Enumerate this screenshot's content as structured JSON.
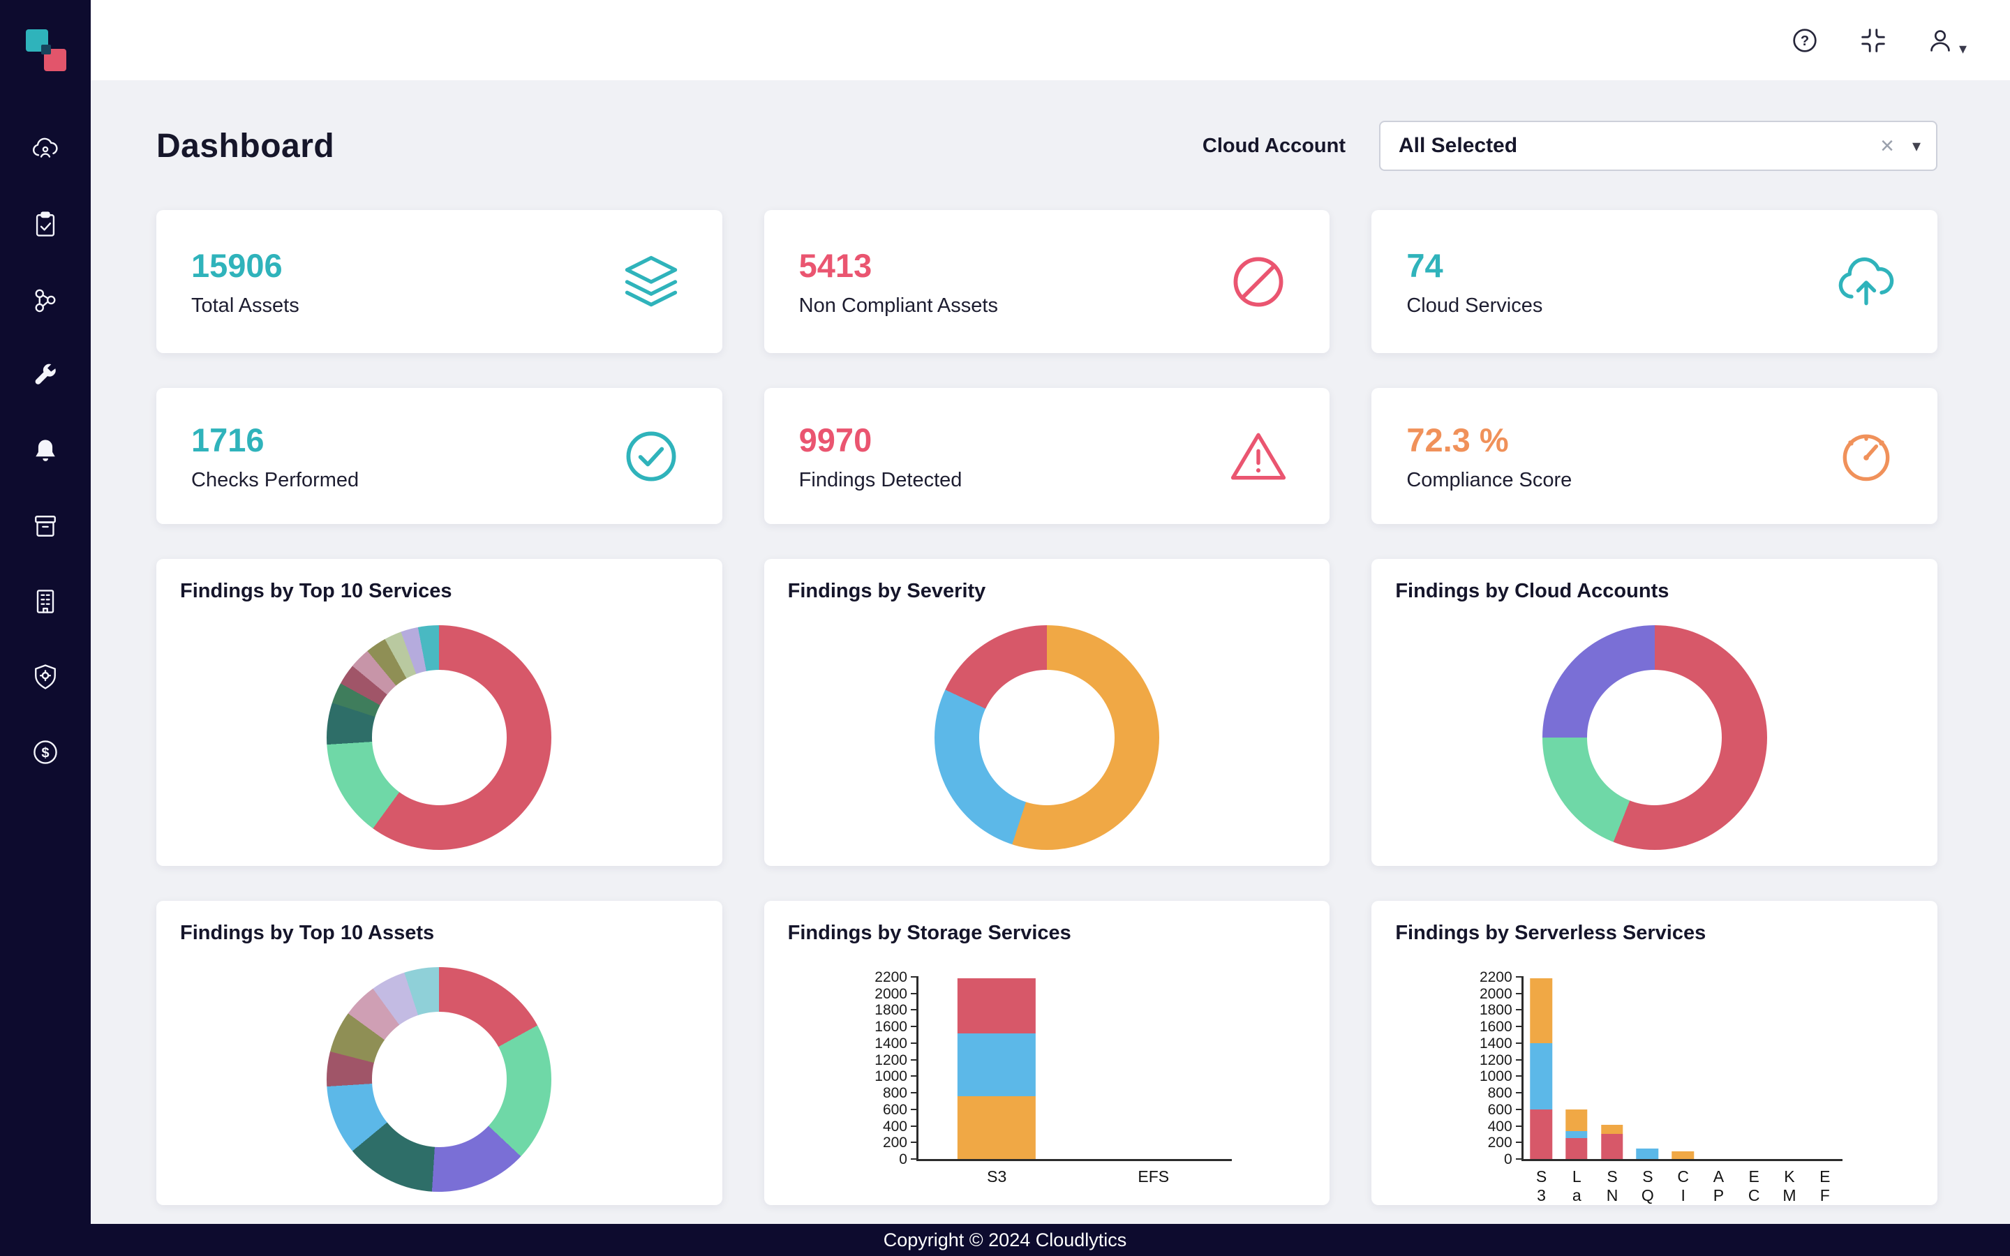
{
  "header": {
    "icons": [
      "help-icon",
      "compress-icon",
      "user-menu-icon"
    ]
  },
  "sidebar": {
    "logo": "cloudlytics-logo",
    "icons": [
      "cloud-account-icon",
      "clipboard-check-icon",
      "resource-graph-icon",
      "wrench-icon",
      "bell-icon",
      "archive-icon",
      "building-icon",
      "shield-icon",
      "dollar-icon"
    ]
  },
  "page": {
    "title": "Dashboard",
    "cloud_account_label": "Cloud Account",
    "cloud_account_value": "All Selected"
  },
  "stats": [
    {
      "value": "15906",
      "label": "Total Assets",
      "color": "#2fb3bb",
      "icon": "layers-icon"
    },
    {
      "value": "5413",
      "label": "Non Compliant Assets",
      "color": "#ea5570",
      "icon": "block-icon"
    },
    {
      "value": "74",
      "label": "Cloud Services",
      "color": "#2fb3bb",
      "icon": "cloud-upload-icon"
    },
    {
      "value": "1716",
      "label": "Checks Performed",
      "color": "#2fb3bb",
      "icon": "check-circle-icon"
    },
    {
      "value": "9970",
      "label": "Findings Detected",
      "color": "#ea5570",
      "icon": "warning-icon"
    },
    {
      "value": "72.3 %",
      "label": "Compliance Score",
      "color": "#f0915a",
      "icon": "gauge-icon"
    }
  ],
  "chart_data": [
    {
      "type": "pie",
      "donut": true,
      "title": "Findings by Top 10 Services",
      "legend": "none",
      "segments": [
        {
          "color": "#d75869",
          "value": 60
        },
        {
          "color": "#6fd8a7",
          "value": 14
        },
        {
          "color": "#2e6e68",
          "value": 6
        },
        {
          "color": "#3f7d5c",
          "value": 3
        },
        {
          "color": "#a05568",
          "value": 3
        },
        {
          "color": "#c795a8",
          "value": 3
        },
        {
          "color": "#8f8f55",
          "value": 3
        },
        {
          "color": "#b9c9a0",
          "value": 2.5
        },
        {
          "color": "#b5abdd",
          "value": 2.5
        },
        {
          "color": "#49b9c2",
          "value": 3
        }
      ]
    },
    {
      "type": "pie",
      "donut": true,
      "title": "Findings by Severity",
      "legend": "none",
      "segments": [
        {
          "color": "#f0a845",
          "value": 55
        },
        {
          "color": "#5cb8e8",
          "value": 27
        },
        {
          "color": "#d75869",
          "value": 18
        }
      ]
    },
    {
      "type": "pie",
      "donut": true,
      "title": "Findings by Cloud Accounts",
      "legend": "none",
      "segments": [
        {
          "color": "#d75869",
          "value": 56
        },
        {
          "color": "#6fd8a7",
          "value": 19
        },
        {
          "color": "#7a6fd6",
          "value": 25
        }
      ]
    },
    {
      "type": "pie",
      "donut": true,
      "title": "Findings by Top 10 Assets",
      "legend": "none",
      "segments": [
        {
          "color": "#d75869",
          "value": 17
        },
        {
          "color": "#6fd8a7",
          "value": 20
        },
        {
          "color": "#7a6fd6",
          "value": 14
        },
        {
          "color": "#2e6e68",
          "value": 13
        },
        {
          "color": "#5cb8e8",
          "value": 10
        },
        {
          "color": "#a05568",
          "value": 5
        },
        {
          "color": "#8f8f55",
          "value": 6
        },
        {
          "color": "#cf9fb4",
          "value": 5
        },
        {
          "color": "#c3bbe3",
          "value": 5
        },
        {
          "color": "#8fd0d8",
          "value": 5
        }
      ]
    },
    {
      "type": "bar",
      "stacked": true,
      "title": "Findings by Storage Services",
      "categories": [
        "S3",
        "EFS"
      ],
      "ylim": [
        0,
        2200
      ],
      "ytick_step": 200,
      "grid": false,
      "legend": "none",
      "series": [
        {
          "name": "stack-1",
          "color": "#f0a845",
          "values": [
            760,
            0
          ]
        },
        {
          "name": "stack-2",
          "color": "#5cb8e8",
          "values": [
            760,
            0
          ]
        },
        {
          "name": "stack-3",
          "color": "#d75869",
          "values": [
            660,
            0
          ]
        }
      ]
    },
    {
      "type": "bar",
      "stacked": true,
      "title": "Findings by Serverless Services",
      "categories": [
        "S3",
        "La",
        "SN",
        "SQ",
        "CI",
        "AP",
        "EC",
        "KM",
        "EF"
      ],
      "label_orientation": "vertical",
      "ylim": [
        0,
        2200
      ],
      "ytick_step": 200,
      "grid": false,
      "legend": "none",
      "series": [
        {
          "name": "stack-1",
          "color": "#d75869",
          "values": [
            600,
            250,
            300,
            0,
            0,
            0,
            0,
            0,
            0
          ]
        },
        {
          "name": "stack-2",
          "color": "#5cb8e8",
          "values": [
            800,
            90,
            0,
            130,
            0,
            0,
            0,
            0,
            0
          ]
        },
        {
          "name": "stack-3",
          "color": "#f0a845",
          "values": [
            780,
            260,
            110,
            0,
            95,
            0,
            0,
            0,
            0
          ]
        }
      ]
    }
  ],
  "footer": {
    "text": "Copyright © 2024 Cloudlytics"
  }
}
